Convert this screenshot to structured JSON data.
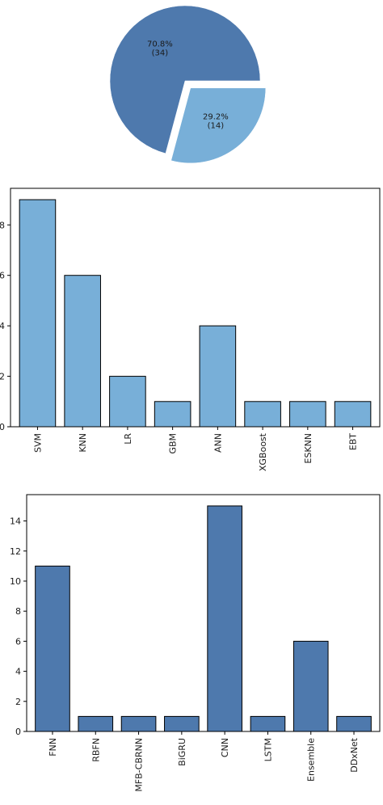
{
  "chart_data": [
    {
      "type": "pie",
      "labels": [
        "",
        ""
      ],
      "values": [
        34,
        14
      ],
      "percent_labels": [
        "70.8%",
        "29.2%"
      ],
      "count_labels": [
        "(34)",
        "(14)"
      ],
      "colors": [
        "#4e79ad",
        "#78afd8"
      ],
      "explode": [
        0,
        0.12
      ],
      "title": ""
    },
    {
      "type": "bar",
      "categories": [
        "SVM",
        "KNN",
        "LR",
        "GBM",
        "ANN",
        "XGBoost",
        "ESKNN",
        "EBT"
      ],
      "values": [
        9,
        6,
        2,
        1,
        4,
        1,
        1,
        1
      ],
      "ylim": [
        0,
        9.45
      ],
      "yticks": [
        0,
        2,
        4,
        6,
        8
      ],
      "ytick_labels": [
        "0",
        "2",
        "4",
        "6",
        "8"
      ],
      "color": "#78afd8",
      "title": "",
      "xlabel": "",
      "ylabel": ""
    },
    {
      "type": "bar",
      "categories": [
        "FNN",
        "RBFN",
        "MFB-CBRNN",
        "BiGRU",
        "CNN",
        "LSTM",
        "Ensemble",
        "DDxNet"
      ],
      "values": [
        11,
        1,
        1,
        1,
        15,
        1,
        6,
        1
      ],
      "ylim": [
        0,
        15.75
      ],
      "yticks": [
        0,
        2,
        4,
        6,
        8,
        10,
        12,
        14
      ],
      "ytick_labels": [
        "0",
        "2",
        "4",
        "6",
        "8",
        "10",
        "12",
        "14"
      ],
      "color": "#4e79ad",
      "title": "",
      "xlabel": "",
      "ylabel": ""
    }
  ]
}
